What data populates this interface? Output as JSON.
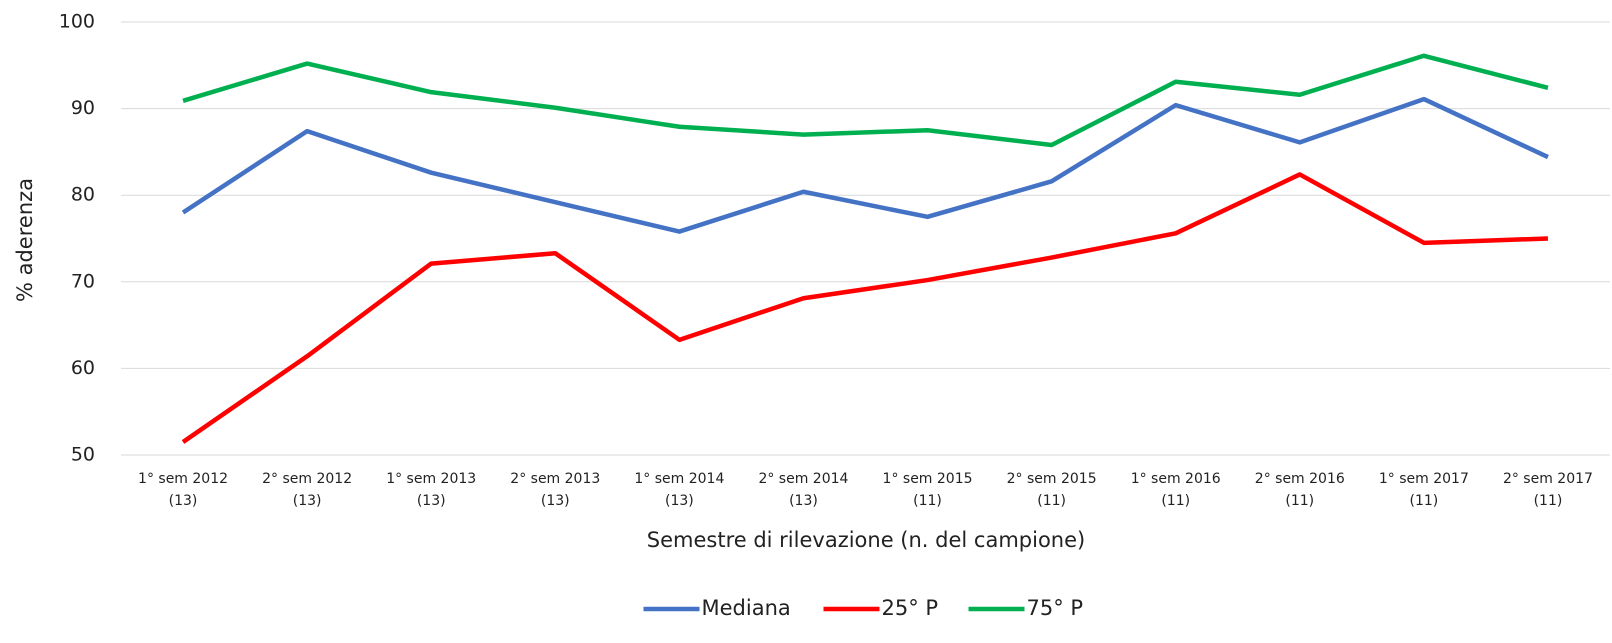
{
  "chart_data": {
    "type": "line",
    "categories": [
      [
        "1° sem 2012",
        "(13)"
      ],
      [
        "2° sem 2012",
        "(13)"
      ],
      [
        "1° sem 2013",
        "(13)"
      ],
      [
        "2° sem 2013",
        "(13)"
      ],
      [
        "1° sem 2014",
        "(13)"
      ],
      [
        "2° sem 2014",
        "(13)"
      ],
      [
        "1° sem 2015",
        "(11)"
      ],
      [
        "2° sem 2015",
        "(11)"
      ],
      [
        "1° sem 2016",
        "(11)"
      ],
      [
        "2° sem 2016",
        "(11)"
      ],
      [
        "1° sem 2017",
        "(11)"
      ],
      [
        "2° sem 2017",
        "(11)"
      ]
    ],
    "series": [
      {
        "name": "Mediana",
        "color": "#4472c4",
        "values": [
          78,
          87.4,
          82.6,
          79.2,
          75.8,
          80.4,
          77.5,
          81.6,
          90.4,
          86.1,
          91.1,
          84.4
        ]
      },
      {
        "name": "25° P",
        "color": "#ff0000",
        "values": [
          51.5,
          61.4,
          72.1,
          73.3,
          63.3,
          68.1,
          70.2,
          72.8,
          75.6,
          82.4,
          74.5,
          75.0
        ]
      },
      {
        "name": "75° P",
        "color": "#00b050",
        "values": [
          90.9,
          95.2,
          91.9,
          90.1,
          87.9,
          87.0,
          87.5,
          85.8,
          93.1,
          91.6,
          96.1,
          92.4
        ]
      }
    ],
    "xlabel": "Semestre di rilevazione (n. del campione)",
    "ylabel": "% aderenza",
    "ylim": [
      50,
      100
    ],
    "yticks": [
      50,
      60,
      70,
      80,
      90,
      100
    ],
    "grid": true,
    "legend": "bottom"
  }
}
